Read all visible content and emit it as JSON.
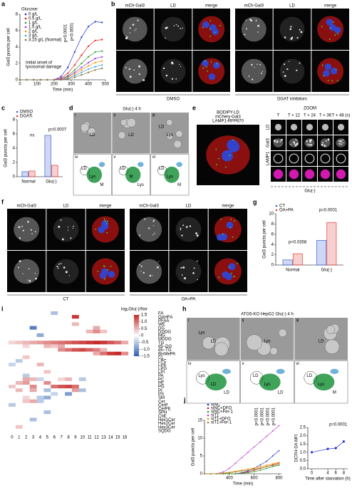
{
  "chart_data": [
    {
      "type": "line",
      "letter": "a",
      "ylabel": "Gal3 puncta per cell",
      "xlabel": "Time (min)",
      "legend_title": "Glucose:",
      "x": [
        0,
        40,
        80,
        120,
        160,
        200,
        240,
        280,
        320,
        360,
        400,
        440,
        480
      ],
      "xlim": [
        0,
        500
      ],
      "xticks": [
        0,
        100,
        200,
        300,
        400,
        500
      ],
      "ylim": [
        0,
        8
      ],
      "yticks": [
        0,
        2,
        4,
        6,
        8
      ],
      "series": [
        {
          "name": "0 g/L",
          "color": "#1f2fd6",
          "values": [
            0,
            0,
            0,
            0,
            0,
            0,
            0.4,
            1.5,
            3.4,
            5.2,
            6.5,
            7.1,
            7
          ]
        },
        {
          "name": "0.5 g/L",
          "color": "#e41a1c",
          "values": [
            0,
            0,
            0,
            0,
            0,
            0,
            0.2,
            0.8,
            1.8,
            3,
            4.1,
            4.8,
            4.9
          ]
        },
        {
          "name": "1 g/L",
          "color": "#2ca02c",
          "values": [
            0,
            0,
            0,
            0,
            0,
            0,
            0.1,
            0.5,
            1.2,
            2,
            2.8,
            3.4,
            3.5
          ]
        },
        {
          "name": "1.5 g/L",
          "color": "#9b30d9",
          "values": [
            0,
            0,
            0,
            0,
            0,
            0,
            0.1,
            0.4,
            0.9,
            1.5,
            2.1,
            2.6,
            2.8
          ]
        },
        {
          "name": "2 g/L",
          "color": "#ff8c00",
          "values": [
            0,
            0,
            0,
            0,
            0,
            0,
            0,
            0.3,
            0.7,
            1.2,
            1.7,
            2.1,
            2.3
          ]
        },
        {
          "name": "3 g/L",
          "color": "#35a7e0",
          "values": [
            0,
            0,
            0,
            0,
            0,
            0,
            0,
            0.2,
            0.5,
            0.9,
            1.3,
            1.6,
            1.8
          ]
        },
        {
          "name": "3.15 g/L (Normal)",
          "color": "#8a6d3b",
          "values": [
            0,
            0,
            0,
            0,
            0,
            0,
            0,
            0.1,
            0.3,
            0.6,
            0.9,
            1.2,
            1.4
          ]
        }
      ],
      "annotations": [
        "p<0.0001",
        "p<0.0001",
        "Initial onset of",
        "lysosomal damage"
      ]
    },
    {
      "type": "bar",
      "letter": "c",
      "ylabel": "Gal3 puncta per cell",
      "categories": [
        "Normal",
        "Glu(-)"
      ],
      "ylim": [
        0,
        8
      ],
      "yticks": [
        0,
        2,
        4,
        6,
        8
      ],
      "series": [
        {
          "name": "DMSO",
          "color": "#3a62d8",
          "values": [
            0.7,
            5.8
          ]
        },
        {
          "name": "DGATi",
          "color": "#e0403a",
          "values": [
            0.8,
            1.6
          ]
        }
      ],
      "annotations": [
        "ns",
        "p=0.0007"
      ]
    },
    {
      "type": "bar",
      "letter": "g",
      "ylabel": "Gal3 puncta per cell",
      "categories": [
        "Normal",
        "Glu(-)"
      ],
      "ylim": [
        0,
        10
      ],
      "yticks": [
        0,
        2,
        4,
        6,
        8,
        10
      ],
      "series": [
        {
          "name": "CT",
          "color": "#3a62d8",
          "values": [
            1,
            4.8
          ]
        },
        {
          "name": "OA+PA",
          "color": "#e0403a",
          "values": [
            2.2,
            8.3
          ]
        }
      ],
      "annotations": [
        "p=0.0358",
        "p=0.0001"
      ]
    },
    {
      "type": "heatmap",
      "letter": "i",
      "colorbar_label": "log₂Glu(-)/Nor",
      "clim": [
        -1.5,
        1.5
      ],
      "cticks": [
        1.5,
        {
          "value": 1,
          "label": "1.0"
        },
        0.5,
        0,
        -0.5,
        {
          "value": -1,
          "label": "−1.0"
        },
        {
          "value": -1.5,
          "label": "−1.5"
        }
      ],
      "columns": [
        0,
        1,
        2,
        3,
        4,
        5,
        6,
        7,
        8,
        9,
        10,
        11,
        12,
        13,
        14,
        15,
        16
      ],
      "rows": [
        "FA",
        "OAHFA",
        "PFAA",
        "WE",
        "DG",
        "DGDG",
        "MG",
        "MGDG",
        "TG",
        "d5−DG",
        "d5−TG",
        "BisMePA",
        "CL",
        "LPC",
        "LPE",
        "LPG",
        "LPI",
        "PA",
        "PC",
        "PE",
        "PG",
        "PI",
        "PS",
        "SM",
        "Cer",
        "CerP",
        "CerPE",
        "SPH",
        "ChE",
        "Hex1Cer",
        "Hex2Cer",
        "Hex3Cer",
        "SQDG"
      ],
      "values": [
        [
          0,
          0,
          0,
          0,
          0,
          0,
          -0.6,
          0,
          0,
          0,
          0,
          0,
          0,
          0,
          0,
          0,
          0
        ],
        [
          0,
          0,
          0,
          0,
          0,
          0,
          0,
          0,
          0,
          1.4,
          0,
          0,
          0,
          0,
          0,
          0,
          0
        ],
        [
          0,
          0,
          0,
          0,
          0,
          0,
          0,
          0,
          0,
          0,
          0,
          0,
          0,
          0,
          0,
          0,
          0
        ],
        [
          0,
          0,
          0,
          0,
          0,
          0,
          0,
          0,
          0,
          0.5,
          0,
          0,
          0,
          0,
          0,
          0,
          0
        ],
        [
          0,
          0,
          0,
          -1.2,
          0,
          0,
          0,
          0,
          0,
          0,
          0,
          0,
          0.6,
          0,
          0,
          0,
          0
        ],
        [
          0,
          0,
          0,
          0,
          0,
          0,
          0,
          0,
          0,
          0,
          0,
          0.5,
          0.8,
          0.4,
          0,
          0,
          0
        ],
        [
          0,
          0,
          0,
          0,
          -0.8,
          0,
          0,
          0,
          0,
          0,
          0,
          0,
          0,
          0,
          0,
          0,
          0
        ],
        [
          0,
          0,
          0,
          0,
          0,
          0,
          0,
          0,
          0,
          0,
          0,
          0,
          0,
          0,
          0,
          0,
          0
        ],
        [
          0.3,
          0.4,
          0.5,
          0.6,
          0.7,
          0.8,
          0.9,
          1,
          1.1,
          1.2,
          1.3,
          1.4,
          1.5,
          1.4,
          1.2,
          1,
          0.6
        ],
        [
          0,
          0,
          0.3,
          0,
          0,
          0.5,
          0.4,
          0.6,
          0,
          0,
          0,
          0,
          0,
          0,
          0,
          0,
          0
        ],
        [
          0,
          0,
          0,
          0,
          0,
          0,
          0,
          0.8,
          1,
          1.2,
          1.3,
          1.1,
          0.9,
          0.5,
          0,
          0,
          0
        ],
        [
          0,
          0,
          0,
          0,
          0,
          0,
          0,
          0,
          0,
          0,
          0,
          0,
          0.6,
          1,
          1.4,
          1.5,
          0.8
        ],
        [
          0,
          0,
          0.4,
          0,
          0,
          0,
          0,
          0,
          0,
          0,
          0,
          0,
          0,
          0,
          0,
          0,
          0
        ],
        [
          0,
          -0.5,
          0,
          0,
          0,
          0,
          0,
          0,
          0,
          0,
          0,
          0,
          0,
          0,
          0,
          0,
          0
        ],
        [
          -0.4,
          0,
          0,
          0,
          0.5,
          0,
          0,
          0,
          0,
          0,
          0,
          0,
          0,
          0,
          0,
          0,
          0
        ],
        [
          0,
          0,
          0,
          0,
          0,
          0,
          0,
          0,
          0,
          0,
          0,
          0,
          0,
          0,
          0,
          0,
          0
        ],
        [
          0,
          0,
          0,
          0,
          0,
          0.4,
          0,
          0,
          0,
          0,
          0,
          0,
          0,
          0,
          0,
          0,
          0
        ],
        [
          0,
          0,
          -0.5,
          0,
          0,
          0,
          0,
          0,
          0,
          0,
          0,
          0,
          0,
          0,
          0,
          0,
          0
        ],
        [
          0,
          0,
          0.6,
          0.5,
          -0.4,
          0,
          0,
          0.3,
          0.5,
          0,
          -0.5,
          0,
          0,
          0,
          0,
          0,
          0
        ],
        [
          0,
          0.5,
          0.7,
          0,
          0,
          0.8,
          0,
          0,
          0,
          0,
          0,
          0,
          0,
          0,
          0,
          0,
          0
        ],
        [
          0.4,
          0,
          0,
          0.8,
          0,
          0,
          1,
          1.2,
          1.3,
          1,
          0,
          0,
          0,
          0,
          0,
          0,
          0
        ],
        [
          0,
          0.5,
          0,
          0.6,
          0,
          -0.6,
          0,
          0,
          0,
          0.7,
          -0.6,
          0,
          0,
          0,
          0,
          0,
          0
        ],
        [
          0,
          0,
          0,
          0,
          0,
          0,
          -0.4,
          0,
          -0.9,
          0,
          0,
          0,
          0,
          0,
          0,
          0,
          0
        ],
        [
          0,
          0,
          0.3,
          0,
          -0.5,
          -0.8,
          0,
          0,
          0,
          0,
          0,
          0,
          0,
          0,
          0,
          0,
          0
        ],
        [
          0,
          0,
          0.4,
          0.6,
          -0.5,
          0,
          0,
          0,
          0,
          0,
          0,
          0,
          0,
          0,
          0,
          0,
          0
        ],
        [
          -0.5,
          0,
          0,
          0,
          0,
          0,
          0,
          0,
          0,
          0,
          0,
          0,
          0,
          0,
          0,
          0,
          0
        ],
        [
          0,
          0,
          0,
          0,
          0,
          0,
          0,
          0,
          0,
          0,
          0,
          0,
          0,
          0,
          0,
          0,
          0
        ],
        [
          0,
          0,
          0,
          0,
          0,
          -0.6,
          0,
          0,
          0,
          0,
          0,
          0,
          0,
          0,
          0,
          0,
          0
        ],
        [
          0,
          0,
          0,
          0,
          0,
          0,
          0,
          0,
          0,
          0,
          0,
          0,
          0,
          0,
          0,
          0,
          0
        ],
        [
          0,
          0,
          0,
          -0.6,
          0,
          0,
          0,
          0,
          0,
          0,
          0,
          0,
          0,
          0,
          0,
          0,
          0
        ],
        [
          0,
          0,
          0,
          0,
          0,
          0,
          0,
          0,
          0,
          0,
          0,
          0,
          0,
          0,
          0,
          0,
          0
        ],
        [
          0,
          0.4,
          0,
          0,
          0,
          0,
          0,
          0,
          0,
          0,
          0,
          0,
          0,
          0,
          0,
          0,
          0
        ],
        [
          0,
          0,
          0,
          0,
          0,
          0,
          0,
          0,
          0,
          0,
          0,
          0,
          0,
          0,
          0,
          0,
          0
        ]
      ]
    },
    {
      "type": "line",
      "letter": "j",
      "ylabel": "Gal3 puncta per cell",
      "xlabel": "Time (min)",
      "x": [
        200,
        250,
        300,
        350,
        400,
        450,
        500,
        550,
        600,
        650,
        700,
        750,
        800
      ],
      "xlim": [
        200,
        820
      ],
      "xticks": [
        400,
        600,
        800
      ],
      "ylim": [
        0,
        15
      ],
      "yticks": [
        0,
        5,
        10,
        15
      ],
      "series": [
        {
          "name": "siNC",
          "color": "#1f2fd6",
          "values": [
            0,
            0,
            0,
            0,
            0,
            0,
            0.3,
            0.8,
            1.5,
            2.5,
            3.5,
            5,
            6.5
          ]
        },
        {
          "name": "siNC+DFO",
          "color": "#e41a1c",
          "values": [
            0,
            0,
            0,
            0,
            0,
            0,
            0.2,
            0.5,
            1,
            1.5,
            2,
            2.5,
            3
          ]
        },
        {
          "name": "siNC+Fer-1",
          "color": "#2ca02c",
          "values": [
            0,
            0,
            0,
            0,
            0,
            0,
            0.1,
            0.3,
            0.6,
            1,
            1.5,
            2,
            2.4
          ]
        },
        {
          "name": "siT1",
          "color": "#c03ad8",
          "values": [
            0,
            0,
            0,
            0.5,
            1.5,
            3,
            4.5,
            6,
            7.5,
            9,
            10.5,
            12,
            13.5
          ]
        },
        {
          "name": "siT1+DFO",
          "color": "#ff8c00",
          "values": [
            0,
            0,
            0,
            0.2,
            0.4,
            0.7,
            1,
            1.3,
            1.6,
            2,
            2.4,
            2.8,
            3.2
          ]
        },
        {
          "name": "siT1+Fer-1",
          "color": "#8a8a2a",
          "values": [
            0,
            0,
            0,
            0.1,
            0.3,
            0.5,
            0.8,
            1,
            1.3,
            1.6,
            2,
            2.3,
            2.6
          ]
        }
      ],
      "annotations": [
        "p<0.0001",
        "p<0.0001",
        "p<0.0001",
        "p<0.0001"
      ]
    },
    {
      "type": "line",
      "letter": "k",
      "ylabel": "DCFH-DA MFI",
      "xlabel": "Time after starvation (h)",
      "x": [
        0,
        4,
        6,
        8
      ],
      "xlim": [
        -1,
        9
      ],
      "xticks": [
        0,
        4,
        6,
        8
      ],
      "ylim": [
        0,
        2.5
      ],
      "yticks": [
        {
          "value": 0,
          "label": "0.0"
        },
        0.5,
        {
          "value": 1,
          "label": "1.0"
        },
        1.5,
        {
          "value": 2,
          "label": "2.0"
        },
        2.5
      ],
      "series": [
        {
          "color": "#1f2fd6",
          "values": [
            1,
            1.2,
            1.25,
            1.65
          ]
        }
      ],
      "annotations": [
        "p=0.0001"
      ]
    }
  ],
  "panels": {
    "b": {
      "letter": "b",
      "groups": [
        {
          "columns": [
            "mCh-Gal3",
            "LD",
            "merge"
          ],
          "rows": [
            "Normal",
            "Glu(-)"
          ],
          "footer": "DMSO"
        },
        {
          "columns": [
            "mCh-Gal3",
            "LD",
            "merge"
          ],
          "rows": [
            "Normal",
            "Glu(-)"
          ],
          "footer": "DGAT inhibitors"
        }
      ]
    },
    "d": {
      "letter": "d",
      "title": "Glu(-) 4 h",
      "tiles": [
        "i",
        "ii",
        "iii",
        "iv",
        "v",
        "vi"
      ],
      "tile_labels": [
        [
          "LD"
        ],
        [
          "LD"
        ],
        [
          "Lys",
          "LD"
        ],
        [
          "Lys",
          "LD",
          "M"
        ],
        [
          "M",
          "LD",
          "Lys"
        ],
        [
          "Lys",
          "LD",
          "M"
        ]
      ]
    },
    "e": {
      "letter": "e",
      "stain_labels": [
        "BODIPY-LD",
        "mChery-Gal3",
        "LAMP1-RFP670"
      ],
      "image_label": "Glu(-)",
      "zoom": "ZOOM",
      "times": [
        "T",
        "T + 12",
        "T + 24",
        "T + 36",
        "T + 48 (s)"
      ],
      "rows": [
        "LD",
        "Gal3",
        "LAMP1"
      ],
      "footer": "Glu(-)"
    },
    "f": {
      "letter": "f",
      "groups": [
        {
          "columns": [
            "mCh-Gal3",
            "LD",
            "merge"
          ],
          "rows": [
            "Normal",
            "Glu(-)"
          ],
          "footer": "CT"
        },
        {
          "columns": [
            "mCh-Gal3",
            "LD",
            "merge"
          ],
          "rows": [
            "Normal",
            "Glu(-)"
          ],
          "footer": "OA+PA"
        }
      ]
    },
    "h": {
      "letter": "h",
      "title": "ATG5-KO HepG2 Glu(-) 4 h",
      "tiles": [
        "i",
        "ii",
        "iii",
        "iv",
        "v",
        "vi"
      ],
      "tile_labels": [
        [
          "LD",
          "Lys"
        ],
        [
          "Lys"
        ],
        [
          "LD"
        ],
        [
          "LD",
          "Lys",
          "LD"
        ],
        [
          "Lys",
          "LD",
          "LD"
        ],
        [
          "Lys",
          "LD",
          "M"
        ]
      ]
    }
  }
}
